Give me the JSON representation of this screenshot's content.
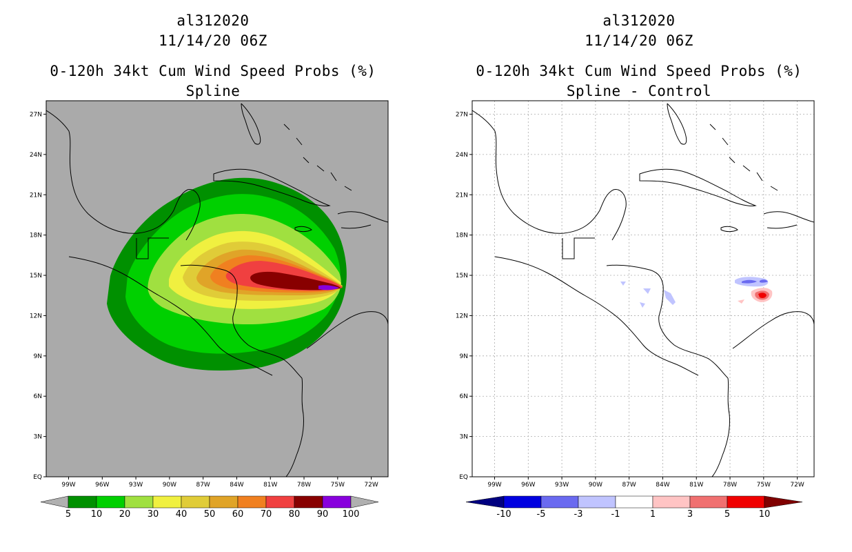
{
  "left": {
    "title": "al312020",
    "date": "11/14/20 06Z",
    "subtitle": "0-120h 34kt Cum Wind Speed Probs (%)",
    "subtitle2": "Spline",
    "colorbar": {
      "labels": [
        "5",
        "10",
        "20",
        "30",
        "40",
        "50",
        "60",
        "70",
        "80",
        "90",
        "100"
      ],
      "colors": [
        "#009000",
        "#00d000",
        "#a0e040",
        "#f0f040",
        "#e0cc38",
        "#e0a428",
        "#f08020",
        "#f04040",
        "#880000",
        "#8800dd"
      ],
      "end_color": "#b0b0b0"
    }
  },
  "right": {
    "title": "al312020",
    "date": "11/14/20 06Z",
    "subtitle": "0-120h 34kt Cum Wind Speed Probs (%)",
    "subtitle2": "Spline - Control",
    "colorbar": {
      "labels": [
        "-10",
        "-5",
        "-3",
        "-1",
        "1",
        "3",
        "5",
        "10"
      ],
      "colors": [
        "#0000e0",
        "#6a6af0",
        "#c0c4ff",
        "#ffffff",
        "#ffc4c4",
        "#f07070",
        "#f00000"
      ],
      "end_left": "#000080",
      "end_right": "#800000"
    }
  },
  "map": {
    "lat_labels": [
      "27N",
      "24N",
      "21N",
      "18N",
      "15N",
      "12N",
      "9N",
      "6N",
      "3N",
      "EQ"
    ],
    "lon_labels": [
      "99W",
      "96W",
      "93W",
      "90W",
      "87W",
      "84W",
      "81W",
      "78W",
      "75W",
      "72W"
    ],
    "lat_range": [
      0,
      28
    ],
    "lon_range": [
      -101,
      -70.5
    ],
    "background_left": "#aaaaaa",
    "background_right": "#ffffff"
  }
}
